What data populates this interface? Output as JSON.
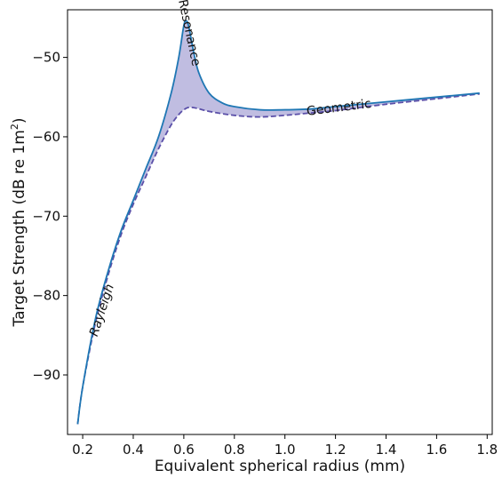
{
  "chart_data": {
    "type": "area",
    "xlabel": "Equivalent spherical radius (mm)",
    "ylabel_main": "Target Strength (dB re 1m",
    "ylabel_sup": "2",
    "ylabel_close": ")",
    "xlim": [
      0.14,
      1.82
    ],
    "ylim": [
      -97.5,
      -44
    ],
    "xticks": [
      0.2,
      0.4,
      0.6,
      0.8,
      1.0,
      1.2,
      1.4,
      1.6,
      1.8
    ],
    "xtick_labels": [
      "0.2",
      "0.4",
      "0.6",
      "0.8",
      "1.0",
      "1.2",
      "1.4",
      "1.6",
      "1.8"
    ],
    "yticks": [
      -90,
      -80,
      -70,
      -60,
      -50
    ],
    "ytick_labels": [
      "−90",
      "−80",
      "−70",
      "−60",
      "−50"
    ],
    "grid": false,
    "colors": {
      "upper_line": "#1f77b4",
      "lower_line": "#5a4fa8",
      "fill": "#8c86c8"
    },
    "series": [
      {
        "line_style": "solid",
        "x": [
          0.18,
          0.2,
          0.25,
          0.3,
          0.35,
          0.4,
          0.45,
          0.5,
          0.55,
          0.58,
          0.6,
          0.61,
          0.62,
          0.64,
          0.66,
          0.7,
          0.75,
          0.8,
          0.9,
          1.0,
          1.1,
          1.2,
          1.4,
          1.6,
          1.77
        ],
        "y": [
          -96.2,
          -91.5,
          -83.0,
          -77.0,
          -72.0,
          -68.0,
          -64.0,
          -60.0,
          -54.5,
          -50.0,
          -46.0,
          -45.4,
          -46.2,
          -49.5,
          -52.0,
          -54.5,
          -55.7,
          -56.2,
          -56.6,
          -56.6,
          -56.5,
          -56.2,
          -55.6,
          -55.0,
          -54.5
        ]
      },
      {
        "line_style": "dashed",
        "x": [
          0.18,
          0.2,
          0.25,
          0.3,
          0.35,
          0.4,
          0.45,
          0.5,
          0.55,
          0.58,
          0.6,
          0.62,
          0.65,
          0.7,
          0.8,
          0.9,
          1.0,
          1.1,
          1.2,
          1.4,
          1.6,
          1.77
        ],
        "y": [
          -96.2,
          -91.5,
          -83.5,
          -77.5,
          -72.5,
          -68.5,
          -65.0,
          -61.5,
          -58.5,
          -57.2,
          -56.6,
          -56.3,
          -56.4,
          -56.8,
          -57.3,
          -57.5,
          -57.3,
          -57.0,
          -56.7,
          -55.9,
          -55.2,
          -54.6
        ]
      }
    ],
    "annotations": [
      {
        "text": "Rayleigh",
        "x": 0.29,
        "y": -82.0,
        "rotation": -72,
        "style": "italic"
      },
      {
        "text": "Resonance",
        "x": 0.607,
        "y": -47.0,
        "rotation": 78,
        "style": "normal"
      },
      {
        "text": "Geometric",
        "x": 1.215,
        "y": -56.8,
        "rotation": -7,
        "style": "normal"
      }
    ]
  }
}
